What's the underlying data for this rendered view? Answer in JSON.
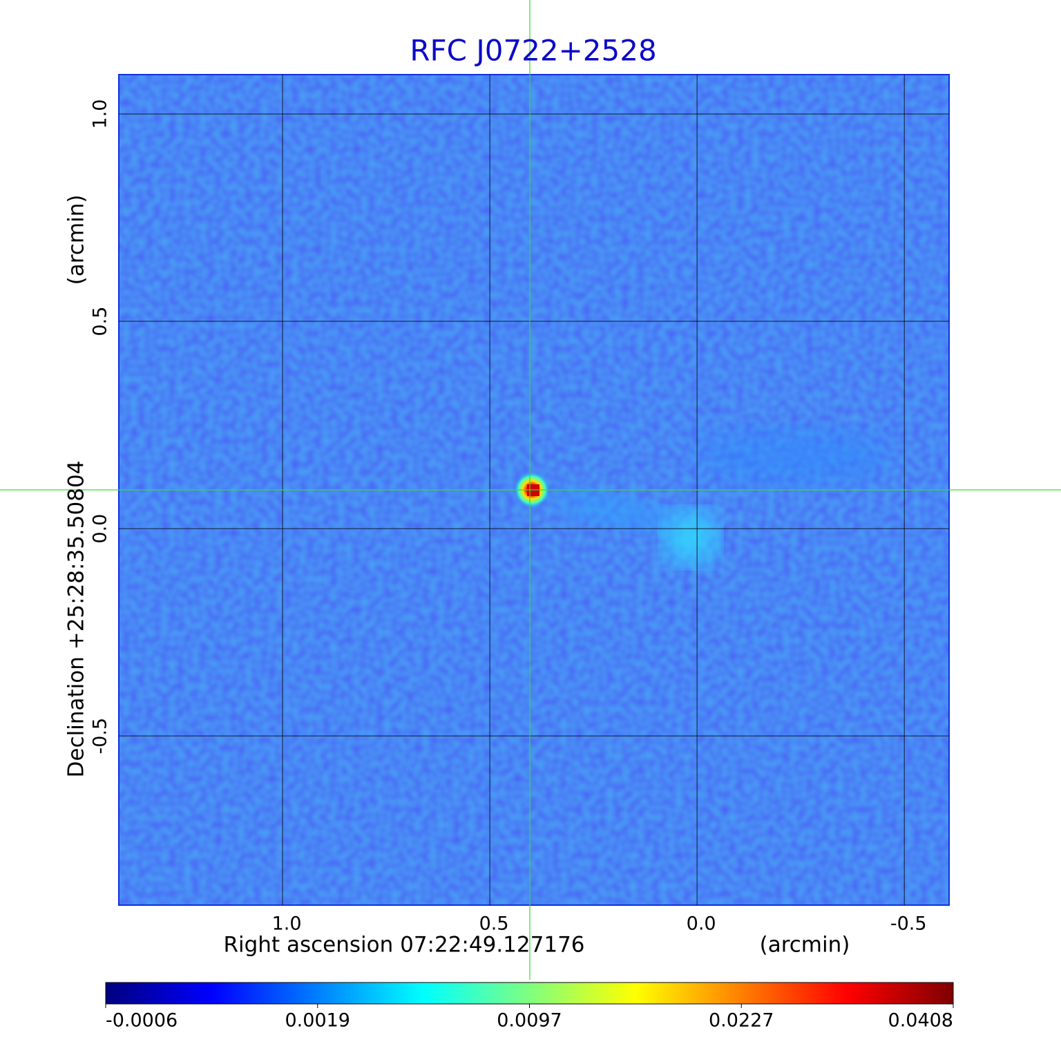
{
  "chart_data": {
    "type": "image",
    "title": "RFC J0722+2528",
    "x_label": "Right ascension  07:22:49.127176",
    "x_unit": "(arcmin)",
    "y_label": "Declination  +25:28:35.50804",
    "y_unit": "(arcmin)",
    "xlim": [
      1.395,
      -0.608
    ],
    "ylim": [
      -0.908,
      1.095
    ],
    "xticks": [
      {
        "value": 1,
        "label": "1.0"
      },
      0.5,
      {
        "value": 0,
        "label": "0.0"
      },
      -0.5
    ],
    "yticks": [
      {
        "value": 1,
        "label": "1.0"
      },
      0.5,
      {
        "value": 0,
        "label": "0.0"
      },
      -0.5
    ],
    "grid": true,
    "colormap": [
      "#00007f",
      "#0000ff",
      "#007fff",
      "#00ffff",
      "#7fff7f",
      "#ffff00",
      "#ff7f00",
      "#ff0000",
      "#7f0000"
    ],
    "colorbar_ticks": [
      -0.0006,
      0.0019,
      0.0097,
      0.0227,
      0.0408
    ]
  }
}
